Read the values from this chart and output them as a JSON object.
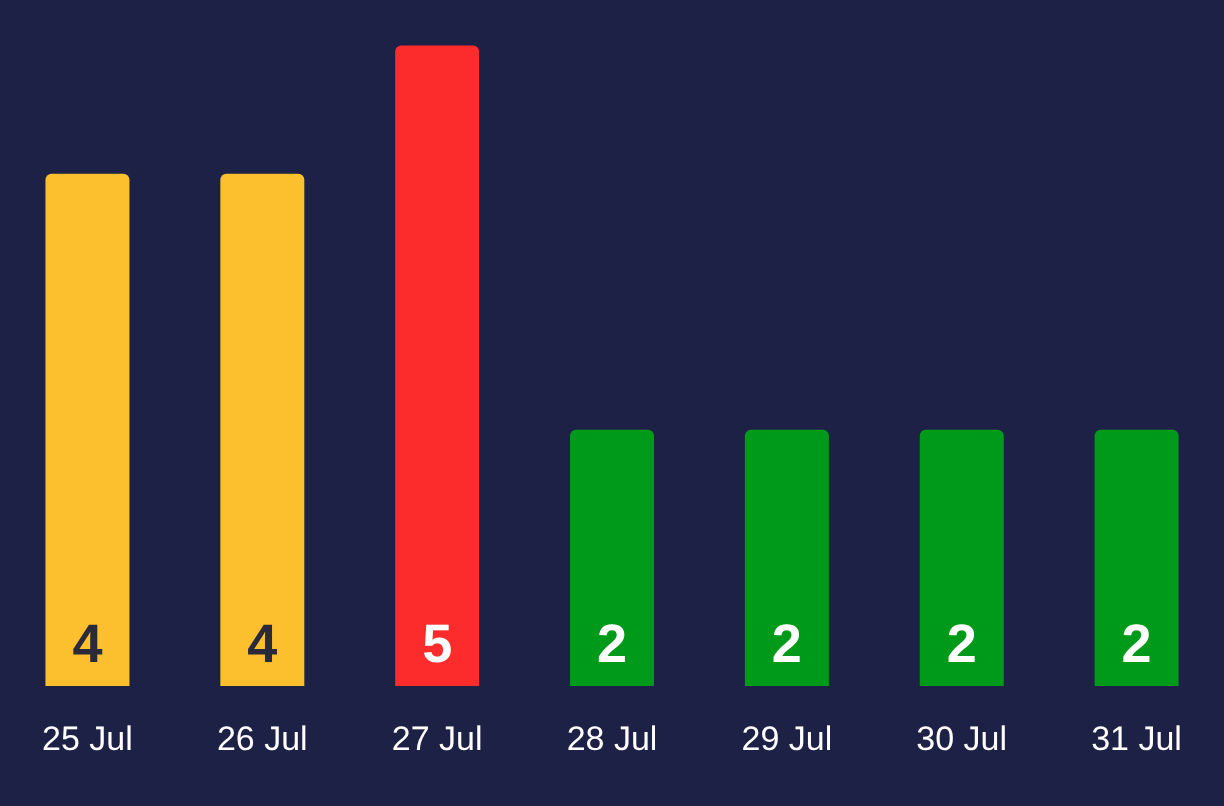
{
  "chart_data": {
    "type": "bar",
    "categories": [
      "25 Jul",
      "26 Jul",
      "27 Jul",
      "28 Jul",
      "29 Jul",
      "30 Jul",
      "31 Jul"
    ],
    "values": [
      4,
      4,
      5,
      2,
      2,
      2,
      2
    ],
    "colors": [
      "#fcbf2e",
      "#fcbf2e",
      "#fc2c2c",
      "#009a1a",
      "#009a1a",
      "#009a1a",
      "#009a1a"
    ],
    "data_labels": true
  }
}
